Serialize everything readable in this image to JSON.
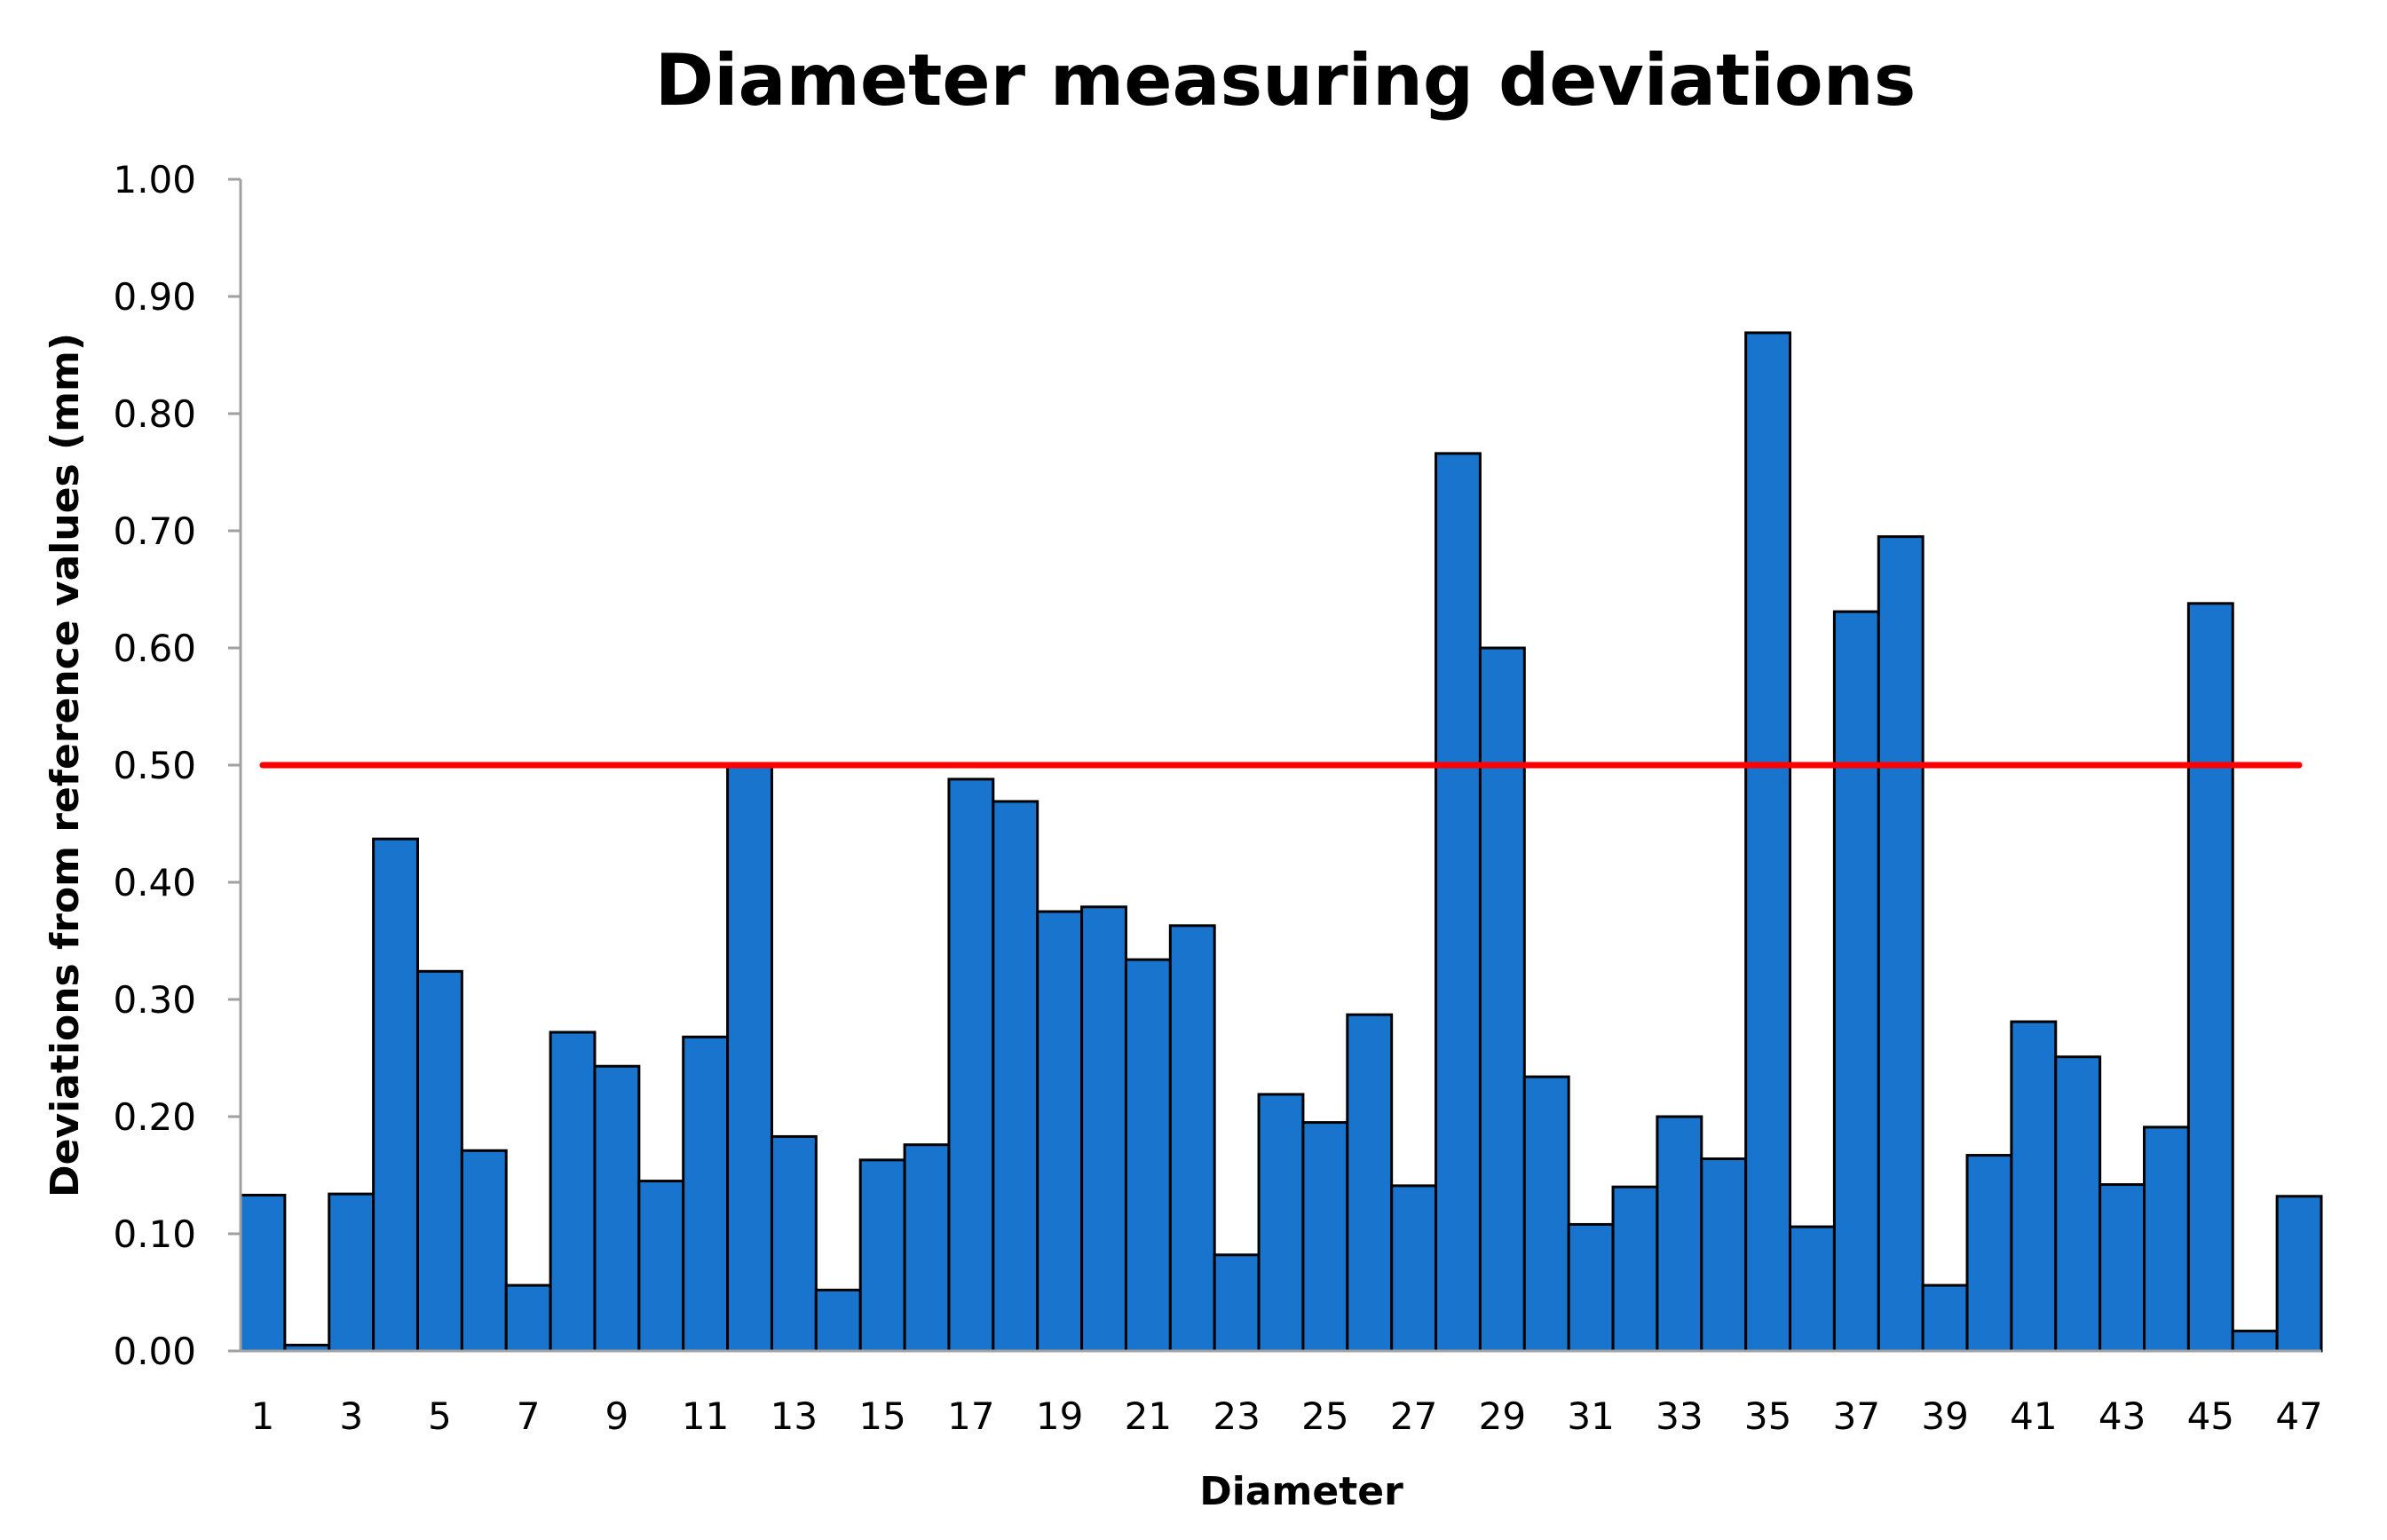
{
  "chart_data": {
    "type": "bar",
    "title": "Diameter measuring deviations",
    "xlabel": "Diameter",
    "ylabel": "Deviations from reference values (mm)",
    "ylim": [
      0,
      1.0
    ],
    "yticks": [
      "0.00",
      "0.10",
      "0.20",
      "0.30",
      "0.40",
      "0.50",
      "0.60",
      "0.70",
      "0.80",
      "0.90",
      "1.00"
    ],
    "categories": [
      1,
      2,
      3,
      4,
      5,
      6,
      7,
      8,
      9,
      10,
      11,
      12,
      13,
      14,
      15,
      16,
      17,
      18,
      19,
      20,
      21,
      22,
      23,
      24,
      25,
      26,
      27,
      28,
      29,
      30,
      31,
      32,
      33,
      34,
      35,
      36,
      37,
      38,
      39,
      40,
      41,
      42,
      43,
      44,
      45,
      46,
      47
    ],
    "xtick_labels_shown": [
      "1",
      "3",
      "5",
      "7",
      "9",
      "11",
      "13",
      "15",
      "17",
      "19",
      "21",
      "23",
      "25",
      "27",
      "29",
      "31",
      "33",
      "35",
      "37",
      "39",
      "41",
      "43",
      "45",
      "47"
    ],
    "values": [
      0.133,
      0.005,
      0.134,
      0.437,
      0.324,
      0.171,
      0.056,
      0.272,
      0.243,
      0.145,
      0.268,
      0.5,
      0.183,
      0.052,
      0.163,
      0.176,
      0.488,
      0.469,
      0.375,
      0.379,
      0.334,
      0.363,
      0.082,
      0.219,
      0.195,
      0.287,
      0.141,
      0.766,
      0.6,
      0.234,
      0.108,
      0.14,
      0.2,
      0.164,
      0.869,
      0.106,
      0.631,
      0.695,
      0.056,
      0.167,
      0.281,
      0.251,
      0.142,
      0.191,
      0.638,
      0.017,
      0.132
    ],
    "threshold": 0.5,
    "grid": false,
    "legend": "none",
    "colors": {
      "bar": "#1874CD",
      "bar_edge": "#000000",
      "threshold_line": "#FF0000",
      "axis": "#A0A0A0"
    }
  }
}
